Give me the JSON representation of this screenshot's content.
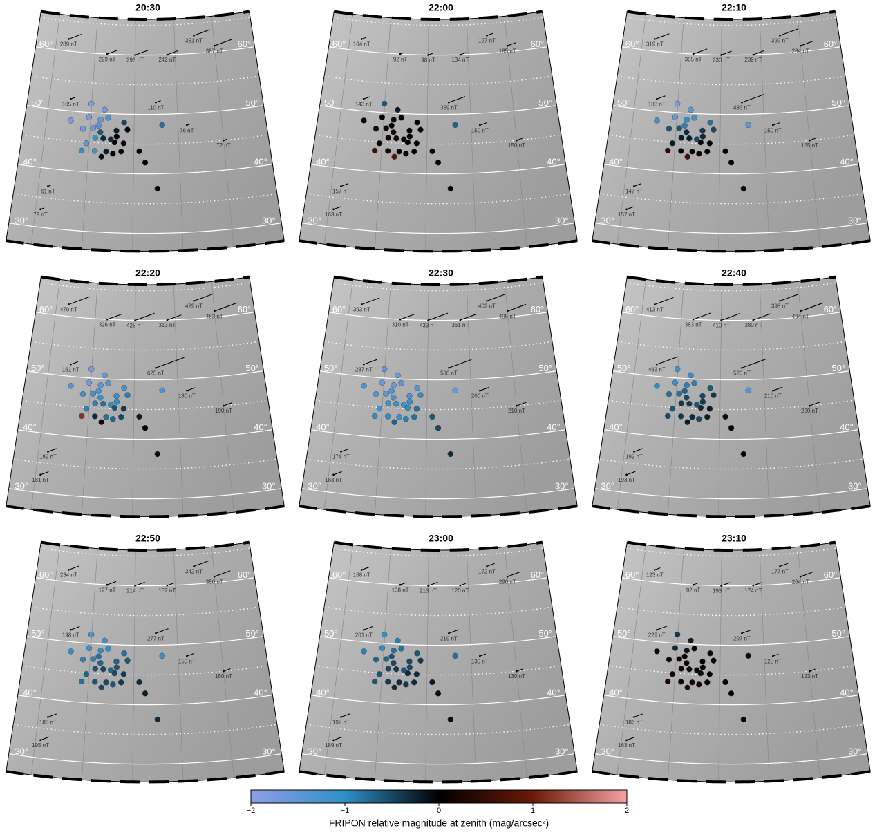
{
  "map": {
    "station_lon": [
      -4.5,
      -1.6,
      -0.6,
      1.4,
      3.9,
      5.4,
      7.2,
      4.8,
      2.3,
      1.9,
      0.7,
      -1.5,
      2.9,
      6.1,
      6.0,
      7.7,
      4.0,
      3.1,
      2.4,
      1.3,
      3.1,
      5.7,
      -0.4,
      8.5,
      11.2,
      7.7,
      12.5,
      15.1,
      16.4,
      -0.1
    ],
    "station_lat": [
      48.4,
      47.2,
      44.8,
      43.6,
      43.6,
      43.3,
      43.7,
      45.7,
      48.9,
      47.9,
      47.4,
      43.5,
      42.7,
      46.2,
      47.2,
      48.6,
      49.3,
      50.6,
      46.8,
      45.8,
      45.8,
      45.2,
      49.2,
      47.4,
      43.8,
      45.1,
      41.9,
      37.5,
      48.2,
      51.5
    ],
    "magnetometer_lon": [
      -7,
      3,
      10,
      18,
      25,
      30,
      -5,
      15,
      22,
      30,
      -8,
      -9
    ],
    "magnetometer_lat": [
      62,
      60,
      60,
      60,
      63,
      61,
      52,
      52,
      48,
      45,
      37,
      33
    ],
    "latitude_labels": [
      {
        "value": 60,
        "label": "60°"
      },
      {
        "value": 50,
        "label": "50°"
      },
      {
        "value": 40,
        "label": "40°"
      },
      {
        "value": 30,
        "label": "30°"
      }
    ],
    "latitude_grid": [
      30,
      35,
      40,
      45,
      50,
      55,
      60,
      65
    ],
    "longitude_grid": [
      -10,
      0,
      10,
      20,
      30,
      40
    ]
  },
  "colorbar": {
    "clim": [
      -2,
      2
    ],
    "colors": [
      "#8f9fe6",
      "#2f8fc7",
      "#000000",
      "#6a1a07",
      "#f5a3a3"
    ],
    "ticks": [
      {
        "value": -2,
        "label": "−2"
      },
      {
        "value": -1,
        "label": "−1"
      },
      0,
      1,
      2
    ],
    "label": "FRIPON relative magnitude at zenith (mag/arcsec²)"
  },
  "chart_data": [
    {
      "type": "map",
      "title": "20:30",
      "magnitudes": [
        -1.8,
        -1.7,
        -1.5,
        -1.2,
        -0.2,
        0,
        0,
        -0.3,
        -1.6,
        -1.4,
        -1.6,
        -1.0,
        -0.1,
        0,
        -0.2,
        -0.5,
        -1.3,
        -1.7,
        -0.6,
        -1.1,
        -0.3,
        0,
        -1.8,
        0,
        0,
        0,
        0,
        0,
        -0.8,
        -1.9
      ],
      "field_nT": [
        289,
        229,
        293,
        242,
        351,
        387,
        105,
        110,
        76,
        72,
        61,
        79
      ],
      "field_labels": [
        "289 nT",
        "229 nT",
        "293 nT",
        "242 nT",
        "351 nT",
        "387 nT",
        "105 nT",
        "110 nT",
        "76 nT",
        "72 nT",
        "61 nT",
        "79 nT"
      ]
    },
    {
      "type": "map",
      "title": "22:00",
      "magnitudes": [
        0,
        0,
        0.1,
        0.2,
        0,
        0.1,
        0,
        0,
        -0.1,
        0,
        0.1,
        0.6,
        0.8,
        0,
        0,
        0,
        0,
        -0.2,
        0.1,
        0.1,
        0,
        0,
        0,
        0,
        0,
        0,
        0,
        0,
        -0.7,
        -0.6
      ],
      "field_nT": [
        104,
        92,
        98,
        134,
        127,
        185,
        143,
        359,
        150,
        150,
        157,
        163
      ],
      "field_labels": [
        "104 nT",
        "92 nT",
        "98 nT",
        "134 nT",
        "127 nT",
        "185 nT",
        "143 nT",
        "359 nT",
        "150 nT",
        "150 nT",
        "157 nT",
        "163 nT"
      ]
    },
    {
      "type": "map",
      "title": "22:10",
      "magnitudes": [
        -1.2,
        -0.6,
        -0.2,
        0,
        0,
        0.2,
        0,
        -0.5,
        -1.0,
        -0.9,
        -0.6,
        0.4,
        0.6,
        -0.3,
        -0.4,
        -0.8,
        -1.2,
        -1.5,
        -0.3,
        -0.2,
        -0.2,
        0,
        -1.6,
        -0.5,
        0,
        0,
        0,
        0,
        -1.5,
        -1.8
      ],
      "field_nT": [
        319,
        305,
        230,
        239,
        399,
        284,
        183,
        486,
        150,
        155,
        147,
        157
      ],
      "field_labels": [
        "319 nT",
        "305 nT",
        "230 nT",
        "239 nT",
        "399 nT",
        "284 nT",
        "183 nT",
        "486 nT",
        "150 nT",
        "155 nT",
        "147 nT",
        "157 nT"
      ]
    },
    {
      "type": "map",
      "title": "22:20",
      "magnitudes": [
        -1.4,
        -1.2,
        -0.9,
        -0.3,
        -0.8,
        -0.7,
        -0.5,
        -1.0,
        -1.5,
        -1.3,
        -1.2,
        1.2,
        0.2,
        -1.0,
        -1.1,
        -1.2,
        -1.4,
        -1.6,
        -1.1,
        -0.9,
        -0.8,
        -0.6,
        -1.7,
        -0.9,
        -0.2,
        -0.4,
        0,
        -0.1,
        -1.3,
        -1.8
      ],
      "field_nT": [
        470,
        326,
        425,
        313,
        429,
        483,
        161,
        625,
        180,
        190,
        189,
        181
      ],
      "field_labels": [
        "470 nT",
        "326 nT",
        "425 nT",
        "313 nT",
        "429 nT",
        "483 nT",
        "161 nT",
        "625 nT",
        "180 nT",
        "190 nT",
        "189 nT",
        "181 nT"
      ]
    },
    {
      "type": "map",
      "title": "22:30",
      "magnitudes": [
        -1.3,
        -1.4,
        -1.2,
        -1.0,
        -1.1,
        -0.9,
        -0.8,
        -1.2,
        -1.6,
        -1.4,
        -1.5,
        -1.0,
        -0.7,
        -1.1,
        -1.3,
        -1.4,
        -1.5,
        -1.6,
        -1.3,
        -1.2,
        -1.1,
        -1.0,
        -1.6,
        -1.0,
        -0.6,
        -0.8,
        -0.5,
        -0.3,
        -1.6,
        -1.5
      ],
      "field_nT": [
        393,
        310,
        433,
        361,
        402,
        405,
        287,
        500,
        200,
        210,
        174,
        183
      ],
      "field_labels": [
        "393 nT",
        "310 nT",
        "433 nT",
        "361 nT",
        "402 nT",
        "405 nT",
        "287 nT",
        "500 nT",
        "200 nT",
        "210 nT",
        "174 nT",
        "183 nT"
      ]
    },
    {
      "type": "map",
      "title": "22:40",
      "magnitudes": [
        -1.0,
        -0.8,
        -0.6,
        -0.4,
        -0.3,
        -0.5,
        -0.2,
        -0.6,
        -0.9,
        -0.7,
        -0.8,
        -0.5,
        -0.2,
        -0.4,
        -0.5,
        -0.6,
        -0.9,
        -1.0,
        -0.5,
        -0.4,
        -0.4,
        -0.3,
        -1.1,
        -0.4,
        -0.1,
        -0.2,
        0,
        0,
        -1.4,
        -1.2
      ],
      "field_nT": [
        413,
        383,
        410,
        380,
        398,
        494,
        463,
        520,
        210,
        220,
        192,
        193
      ],
      "field_labels": [
        "413 nT",
        "383 nT",
        "410 nT",
        "380 nT",
        "398 nT",
        "494 nT",
        "463 nT",
        "520 nT",
        "210 nT",
        "220 nT",
        "192 nT",
        "193 nT"
      ]
    },
    {
      "type": "map",
      "title": "22:50",
      "magnitudes": [
        -1.1,
        -0.9,
        -0.7,
        -0.6,
        -0.5,
        -0.6,
        -0.4,
        -0.7,
        -1.0,
        -0.8,
        -0.9,
        -0.8,
        -0.5,
        -0.6,
        -0.7,
        -0.8,
        -1.0,
        -1.2,
        -0.7,
        -0.6,
        -0.5,
        -0.5,
        -1.2,
        -0.6,
        -0.3,
        -0.4,
        -0.2,
        -0.3,
        -1.1,
        -1.3
      ],
      "field_nT": [
        234,
        197,
        214,
        152,
        342,
        350,
        198,
        277,
        150,
        150,
        188,
        195
      ],
      "field_labels": [
        "234 nT",
        "197 nT",
        "214 nT",
        "152 nT",
        "342 nT",
        "350 nT",
        "198 nT",
        "277 nT",
        "150 nT",
        "150 nT",
        "188 nT",
        "195 nT"
      ]
    },
    {
      "type": "map",
      "title": "23:00",
      "magnitudes": [
        -0.9,
        -0.7,
        -0.6,
        -0.4,
        -0.3,
        -0.4,
        -0.3,
        -0.6,
        -0.8,
        -0.6,
        -0.7,
        -0.6,
        -0.3,
        -0.5,
        -0.5,
        -0.6,
        -0.8,
        -0.9,
        -0.5,
        -0.5,
        -0.4,
        -0.3,
        -1.0,
        -0.4,
        -0.2,
        -0.3,
        -0.1,
        -0.1,
        -0.8,
        -1.0
      ],
      "field_nT": [
        168,
        138,
        213,
        120,
        172,
        290,
        201,
        219,
        130,
        130,
        192,
        189
      ],
      "field_labels": [
        "168 nT",
        "138 nT",
        "213 nT",
        "120 nT",
        "172 nT",
        "290 nT",
        "201 nT",
        "219 nT",
        "130 nT",
        "130 nT",
        "192 nT",
        "189 nT"
      ]
    },
    {
      "type": "map",
      "title": "23:10",
      "magnitudes": [
        0,
        0.1,
        0.2,
        0.1,
        0.2,
        0.1,
        0,
        0,
        -0.1,
        0,
        0.1,
        0.2,
        0.3,
        0,
        0,
        -0.1,
        0,
        -0.2,
        0.1,
        0.2,
        0.1,
        0,
        -0.3,
        0,
        0,
        0,
        0,
        0,
        0.2,
        -0.4
      ],
      "field_nT": [
        123,
        92,
        193,
        174,
        177,
        264,
        229,
        207,
        125,
        123,
        186,
        163
      ],
      "field_labels": [
        "123 nT",
        "92 nT",
        "193 nT",
        "174 nT",
        "177 nT",
        "264 nT",
        "229 nT",
        "207 nT",
        "125 nT",
        "123 nT",
        "186 nT",
        "163 nT"
      ]
    }
  ]
}
